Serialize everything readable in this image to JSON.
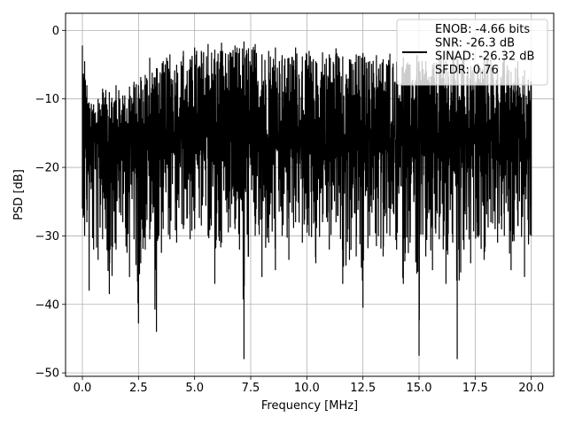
{
  "chart_data": {
    "type": "line",
    "title": "",
    "xlabel": "Frequency [MHz]",
    "ylabel": "PSD [dB]",
    "xlim": [
      -0.75,
      21.0
    ],
    "ylim": [
      -50.5,
      2.5
    ],
    "grid": true,
    "xticks": [
      0.0,
      2.5,
      5.0,
      7.5,
      10.0,
      12.5,
      15.0,
      17.5,
      20.0
    ],
    "xtick_labels": [
      "0.0",
      "2.5",
      "5.0",
      "7.5",
      "10.0",
      "12.5",
      "15.0",
      "17.5",
      "20.0"
    ],
    "yticks": [
      0,
      -10,
      -20,
      -30,
      -40,
      -50
    ],
    "ytick_labels": [
      "0",
      "−10",
      "−20",
      "−30",
      "−40",
      "−50"
    ],
    "line_color": "#000000",
    "legend": {
      "position": "top-right",
      "entries": [
        "ENOB: -4.66 bits",
        "SNR: -26.3 dB",
        "SINAD: -26.32 dB",
        "SFDR: 0.76"
      ]
    },
    "series": [
      {
        "x": [
          0,
          0.1,
          0.2,
          0.3,
          0.5,
          0.7,
          0.9,
          1.2,
          1.5,
          1.8,
          2.1,
          2.3,
          2.5,
          2.6,
          2.8,
          3.0,
          3.3,
          3.6,
          3.9,
          4.2,
          4.5,
          4.8,
          5.0,
          5.3,
          5.6,
          5.9,
          6.2,
          6.5,
          6.8,
          7.0,
          7.2,
          7.4,
          7.7,
          8.0,
          8.3,
          8.6,
          8.9,
          9.2,
          9.5,
          9.8,
          10.1,
          10.4,
          10.7,
          11.0,
          11.3,
          11.6,
          11.9,
          12.2,
          12.5,
          12.8,
          13.1,
          13.4,
          13.7,
          14.0,
          14.3,
          14.6,
          14.9,
          15.0,
          15.3,
          15.6,
          15.9,
          16.2,
          16.5,
          16.7,
          17.0,
          17.3,
          17.6,
          17.9,
          18.2,
          18.5,
          18.8,
          19.1,
          19.4,
          19.7,
          20.0
        ],
        "upper": [
          -2.2,
          -4.5,
          -8.0,
          -10.5,
          -10.8,
          -10.0,
          -8.5,
          -9.0,
          -8.0,
          -9.5,
          -8.2,
          -7.5,
          -8.0,
          -6.8,
          -6.5,
          -4.0,
          -5.5,
          -4.5,
          -3.5,
          -5.0,
          -3.0,
          -4.2,
          -2.5,
          -3.0,
          -2.0,
          -2.8,
          -1.8,
          -3.5,
          -2.2,
          -2.6,
          -1.6,
          -2.6,
          -2.0,
          -3.5,
          -3.0,
          -2.5,
          -3.6,
          -4.0,
          -2.5,
          -3.8,
          -3.0,
          -4.5,
          -3.2,
          -3.5,
          -2.6,
          -3.8,
          -4.2,
          -3.5,
          -3.3,
          -4.5,
          -3.6,
          -4.2,
          -3.4,
          -4.6,
          -3.9,
          -5.0,
          -3.6,
          -4.5,
          -4.5,
          -5.0,
          -3.8,
          -4.5,
          -3.6,
          -4.0,
          -3.8,
          -5.2,
          -4.8,
          -3.9,
          -4.2,
          -5.0,
          -4.0,
          -6.0,
          -4.5,
          -5.8,
          -7.5
        ],
        "lower": [
          -26.0,
          -30.0,
          -28.0,
          -38.0,
          -32.0,
          -33.5,
          -30.5,
          -38.5,
          -32.0,
          -28.0,
          -36.0,
          -30.5,
          -42.8,
          -34.0,
          -32.0,
          -30.5,
          -44.0,
          -29.0,
          -30.5,
          -31.0,
          -29.0,
          -30.5,
          -29.0,
          -28.5,
          -30.0,
          -37.0,
          -31.0,
          -29.5,
          -29.0,
          -32.0,
          -48.0,
          -33.0,
          -30.0,
          -36.0,
          -31.0,
          -35.0,
          -30.0,
          -33.5,
          -28.0,
          -31.0,
          -30.0,
          -34.0,
          -28.0,
          -32.0,
          -28.0,
          -37.0,
          -33.5,
          -33.0,
          -40.5,
          -30.0,
          -31.5,
          -33.0,
          -30.0,
          -32.0,
          -37.0,
          -31.0,
          -35.5,
          -47.5,
          -33.0,
          -35.0,
          -30.5,
          -37.0,
          -31.0,
          -48.0,
          -32.0,
          -34.0,
          -30.0,
          -33.5,
          -28.0,
          -31.0,
          -30.0,
          -35.0,
          -28.5,
          -36.0,
          -30.0
        ]
      }
    ]
  }
}
